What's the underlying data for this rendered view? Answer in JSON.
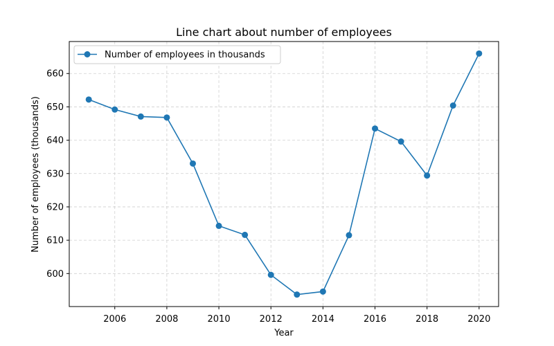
{
  "chart_data": {
    "type": "line",
    "title": "Line chart about number of employees",
    "xlabel": "Year",
    "ylabel": "Number of employees (thousands)",
    "x": [
      2005,
      2006,
      2007,
      2008,
      2009,
      2010,
      2011,
      2012,
      2013,
      2014,
      2015,
      2016,
      2017,
      2018,
      2019,
      2020
    ],
    "series": [
      {
        "name": "Number of employees in thousands",
        "values": [
          652.2,
          649.2,
          647.1,
          646.8,
          633.0,
          614.3,
          611.6,
          599.6,
          593.7,
          594.6,
          611.5,
          643.5,
          639.6,
          629.4,
          650.4,
          666.0
        ],
        "color": "#1f77b4"
      }
    ],
    "xticks": [
      2006,
      2008,
      2010,
      2012,
      2014,
      2016,
      2018,
      2020
    ],
    "yticks": [
      600,
      610,
      620,
      630,
      640,
      650,
      660
    ],
    "xlim": [
      2004.25,
      2020.75
    ],
    "ylim": [
      590.1,
      669.6
    ],
    "grid": true,
    "legend_position": "top-left"
  }
}
